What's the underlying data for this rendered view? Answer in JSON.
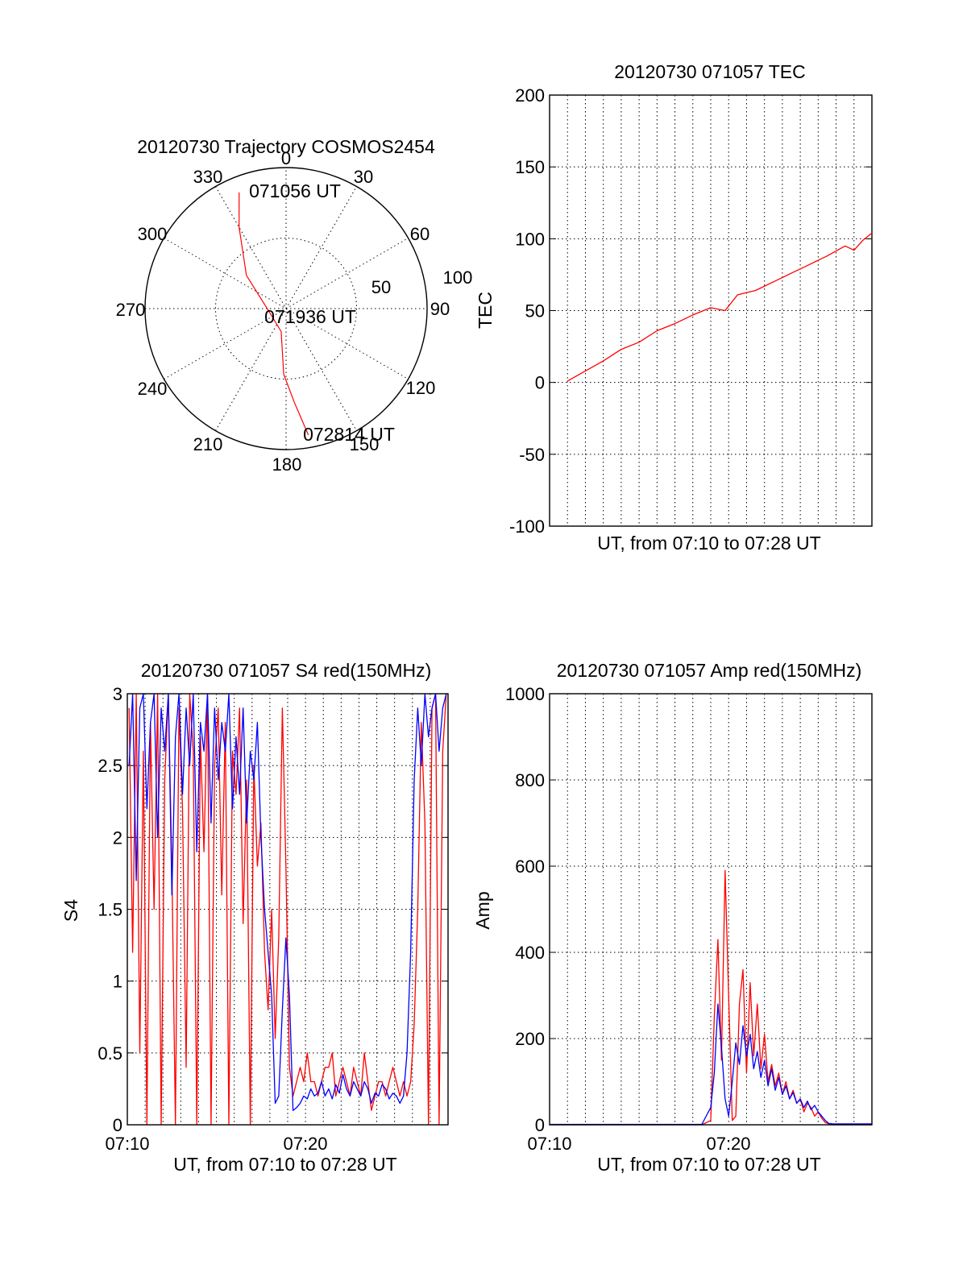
{
  "chart_data": [
    {
      "type": "polar",
      "title": "20120730 Trajectory COSMOS2454",
      "azimuth_labels": [
        "0",
        "30",
        "60",
        "90",
        "120",
        "150",
        "180",
        "210",
        "240",
        "270",
        "300",
        "330"
      ],
      "radial_labels": [
        "50",
        "100"
      ],
      "annotations": {
        "start": "071056 UT",
        "middle": "071936 UT",
        "end": "072814 UT"
      },
      "series": [
        {
          "color": "#ff0000",
          "points": [
            {
              "az": 338,
              "el": 10
            },
            {
              "az": 330,
              "el": 30
            },
            {
              "az": 310,
              "el": 57
            },
            {
              "az": 260,
              "el": 79
            },
            {
              "az": 192,
              "el": 75
            },
            {
              "az": 182,
              "el": 48
            },
            {
              "az": 175,
              "el": 30
            },
            {
              "az": 170,
              "el": 8
            }
          ]
        }
      ]
    },
    {
      "type": "line",
      "title": "20120730 071057 TEC",
      "ylabel": "TEC",
      "xlabel": "UT, from 07:10 to 07:28 UT",
      "xlim": [
        0,
        18
      ],
      "ylim": [
        -100,
        200
      ],
      "yticks": [
        "-100",
        "-50",
        "0",
        "50",
        "100",
        "150",
        "200"
      ],
      "grid": true,
      "series": [
        {
          "color": "#ff0000",
          "x": [
            1.0,
            2.0,
            3.0,
            4.0,
            5.0,
            6.0,
            7.0,
            8.0,
            9.0,
            9.8,
            10.5,
            11.5,
            12.5,
            13.5,
            14.5,
            15.5,
            16.5,
            17.0,
            17.5,
            18.0
          ],
          "y": [
            1,
            8,
            15,
            23,
            28,
            36,
            41,
            47,
            52,
            50,
            61,
            64,
            70,
            76,
            82,
            88,
            95,
            92,
            99,
            104
          ]
        }
      ]
    },
    {
      "type": "line",
      "title": "20120730 071057 S4 red(150MHz)",
      "ylabel": "S4",
      "xlabel": "UT, from 07:10 to 07:28 UT",
      "xlim": [
        0,
        18
      ],
      "ylim": [
        0,
        3
      ],
      "yticks": [
        "0",
        "0.5",
        "1",
        "1.5",
        "2",
        "2.5",
        "3"
      ],
      "xticks": [
        "07:10",
        "07:20"
      ],
      "grid": true,
      "series": [
        {
          "color": "#ff0000",
          "x": [
            0.1,
            0.3,
            0.5,
            0.7,
            0.9,
            1.1,
            1.3,
            1.5,
            1.7,
            1.9,
            2.1,
            2.3,
            2.5,
            2.7,
            2.9,
            3.1,
            3.3,
            3.5,
            3.7,
            3.9,
            4.1,
            4.3,
            4.5,
            4.7,
            4.9,
            5.1,
            5.3,
            5.5,
            5.7,
            5.9,
            6.1,
            6.3,
            6.5,
            6.7,
            6.9,
            7.1,
            7.3,
            7.5,
            7.7,
            7.9,
            8.1,
            8.3,
            8.5,
            8.7,
            8.9,
            9.1,
            9.3,
            9.5,
            9.7,
            9.9,
            10.1,
            10.3,
            10.5,
            10.7,
            10.9,
            11.1,
            11.3,
            11.5,
            11.7,
            11.9,
            12.1,
            12.3,
            12.5,
            12.7,
            12.9,
            13.1,
            13.3,
            13.5,
            13.7,
            13.9,
            14.1,
            14.3,
            14.5,
            14.7,
            14.9,
            15.1,
            15.3,
            15.5,
            15.7,
            15.9,
            16.1,
            16.3,
            16.5,
            16.7,
            16.9,
            17.1,
            17.3,
            17.5,
            17.7,
            17.9
          ],
          "y": [
            2.9,
            1.2,
            3.0,
            0.5,
            2.6,
            0.0,
            2.8,
            1.5,
            3.0,
            0.0,
            2.4,
            3.0,
            1.8,
            0.0,
            2.9,
            2.2,
            0.4,
            3.0,
            2.6,
            0.0,
            2.7,
            1.9,
            3.0,
            0.0,
            2.5,
            2.9,
            1.6,
            2.8,
            0.0,
            2.6,
            2.3,
            2.9,
            1.4,
            2.4,
            0.0,
            2.5,
            1.8,
            2.1,
            1.2,
            0.8,
            1.5,
            0.6,
            1.3,
            2.9,
            1.8,
            0.4,
            0.2,
            0.3,
            0.4,
            0.3,
            0.5,
            0.3,
            0.3,
            0.2,
            0.3,
            0.4,
            0.4,
            0.5,
            0.2,
            0.3,
            0.4,
            0.3,
            0.2,
            0.4,
            0.3,
            0.2,
            0.5,
            0.3,
            0.1,
            0.2,
            0.3,
            0.3,
            0.2,
            0.3,
            0.4,
            0.3,
            0.2,
            0.3,
            0.2,
            0.3,
            0.7,
            1.5,
            2.8,
            2.1,
            0.0,
            2.9,
            3.0,
            0.0,
            2.6,
            3.0
          ]
        },
        {
          "color": "#0000ff",
          "x": [
            0.1,
            0.3,
            0.5,
            0.7,
            0.9,
            1.1,
            1.3,
            1.5,
            1.7,
            1.9,
            2.1,
            2.3,
            2.5,
            2.7,
            2.9,
            3.1,
            3.3,
            3.5,
            3.7,
            3.9,
            4.1,
            4.3,
            4.5,
            4.7,
            4.9,
            5.1,
            5.3,
            5.5,
            5.7,
            5.9,
            6.1,
            6.3,
            6.5,
            6.7,
            6.9,
            7.1,
            7.3,
            7.5,
            7.7,
            7.9,
            8.1,
            8.3,
            8.5,
            8.7,
            8.9,
            9.1,
            9.3,
            9.5,
            9.7,
            9.9,
            10.1,
            10.3,
            10.5,
            10.7,
            10.9,
            11.1,
            11.3,
            11.5,
            11.7,
            11.9,
            12.1,
            12.3,
            12.5,
            12.7,
            12.9,
            13.1,
            13.3,
            13.5,
            13.7,
            13.9,
            14.1,
            14.3,
            14.5,
            14.7,
            14.9,
            15.1,
            15.3,
            15.5,
            15.7,
            15.9,
            16.1,
            16.3,
            16.5,
            16.7,
            16.9,
            17.1,
            17.3,
            17.5,
            17.7,
            17.9
          ],
          "y": [
            2.5,
            3.0,
            1.7,
            2.9,
            3.0,
            2.2,
            2.8,
            3.0,
            2.0,
            2.9,
            2.6,
            3.0,
            1.6,
            2.7,
            3.0,
            2.3,
            2.9,
            2.5,
            3.0,
            1.9,
            2.8,
            2.6,
            3.0,
            2.1,
            2.9,
            2.4,
            2.8,
            2.6,
            3.0,
            2.2,
            2.7,
            2.3,
            2.9,
            2.1,
            2.6,
            2.4,
            2.8,
            2.0,
            1.5,
            1.2,
            0.9,
            0.15,
            0.2,
            0.8,
            1.3,
            0.9,
            0.1,
            0.12,
            0.15,
            0.2,
            0.18,
            0.25,
            0.2,
            0.22,
            0.3,
            0.2,
            0.25,
            0.18,
            0.28,
            0.22,
            0.35,
            0.25,
            0.2,
            0.3,
            0.25,
            0.2,
            0.3,
            0.25,
            0.15,
            0.22,
            0.2,
            0.28,
            0.25,
            0.18,
            0.22,
            0.2,
            0.15,
            0.2,
            0.5,
            1.2,
            2.4,
            2.9,
            2.5,
            3.0,
            2.7,
            2.9,
            3.0,
            2.6,
            2.9,
            3.0
          ]
        }
      ]
    },
    {
      "type": "line",
      "title": "20120730 071057 Amp red(150MHz)",
      "ylabel": "Amp",
      "xlabel": "UT, from 07:10 to 07:28 UT",
      "xlim": [
        0,
        18
      ],
      "ylim": [
        0,
        1000
      ],
      "yticks": [
        "0",
        "200",
        "400",
        "600",
        "800",
        "1000"
      ],
      "xticks": [
        "07:10",
        "07:20"
      ],
      "grid": true,
      "series": [
        {
          "color": "#ff0000",
          "x": [
            0,
            1,
            2,
            3,
            4,
            5,
            6,
            7,
            8,
            8.5,
            9.0,
            9.2,
            9.4,
            9.6,
            9.8,
            10.0,
            10.2,
            10.4,
            10.6,
            10.8,
            11.0,
            11.2,
            11.4,
            11.6,
            11.8,
            12.0,
            12.2,
            12.4,
            12.6,
            12.8,
            13.0,
            13.2,
            13.4,
            13.6,
            13.8,
            14.0,
            14.2,
            14.4,
            14.6,
            14.8,
            15.0,
            15.2,
            15.4,
            15.6,
            15.8,
            16.0,
            16.5,
            17.0,
            18.0
          ],
          "y": [
            0,
            0,
            0,
            0,
            0,
            0,
            0,
            0,
            0,
            0,
            10,
            250,
            430,
            150,
            590,
            300,
            10,
            20,
            280,
            360,
            120,
            330,
            160,
            280,
            130,
            210,
            100,
            140,
            90,
            120,
            70,
            100,
            60,
            80,
            50,
            60,
            30,
            50,
            40,
            20,
            30,
            15,
            5,
            2,
            0,
            0,
            0,
            0,
            0
          ]
        },
        {
          "color": "#0000ff",
          "x": [
            0,
            1,
            2,
            3,
            4,
            5,
            6,
            7,
            8,
            8.5,
            9.0,
            9.2,
            9.4,
            9.6,
            9.8,
            10.0,
            10.2,
            10.4,
            10.6,
            10.8,
            11.0,
            11.2,
            11.4,
            11.6,
            11.8,
            12.0,
            12.2,
            12.4,
            12.6,
            12.8,
            13.0,
            13.2,
            13.4,
            13.6,
            13.8,
            14.0,
            14.2,
            14.4,
            14.6,
            14.8,
            15.0,
            15.2,
            15.4,
            15.6,
            15.8,
            16.0,
            16.5,
            17.0,
            18.0
          ],
          "y": [
            1,
            1,
            1,
            1,
            1,
            1,
            1,
            1,
            1,
            1,
            40,
            120,
            280,
            180,
            60,
            20,
            100,
            190,
            140,
            230,
            160,
            210,
            130,
            170,
            110,
            150,
            90,
            130,
            80,
            110,
            70,
            90,
            60,
            75,
            50,
            60,
            40,
            55,
            35,
            45,
            30,
            20,
            10,
            3,
            2,
            2,
            2,
            2,
            2
          ]
        }
      ]
    }
  ]
}
